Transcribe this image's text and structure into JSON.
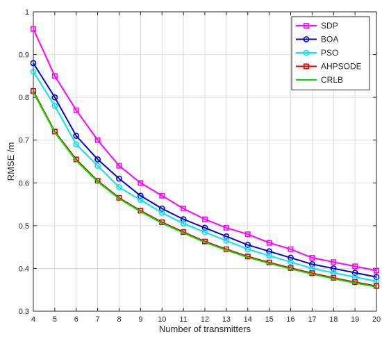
{
  "chart_data": {
    "type": "line",
    "title": "",
    "xlabel": "Number of transmitters",
    "ylabel": "RMSE /m",
    "xlim": [
      4,
      20
    ],
    "ylim": [
      0.3,
      1
    ],
    "x": [
      4,
      5,
      6,
      7,
      8,
      9,
      10,
      11,
      12,
      13,
      14,
      15,
      16,
      17,
      18,
      19,
      20
    ],
    "xticks": [
      "4",
      "5",
      "6",
      "7",
      "8",
      "9",
      "10",
      "11",
      "12",
      "13",
      "14",
      "15",
      "16",
      "17",
      "18",
      "19",
      "20"
    ],
    "yticks": [
      "0.3",
      "0.4",
      "0.5",
      "0.6",
      "0.7",
      "0.8",
      "0.9",
      "1"
    ],
    "grid": true,
    "legend_position": "top-right",
    "series": [
      {
        "name": "SDP",
        "color": "#ff00ff",
        "marker": "square",
        "values": [
          0.96,
          0.85,
          0.77,
          0.7,
          0.64,
          0.6,
          0.57,
          0.54,
          0.515,
          0.495,
          0.48,
          0.46,
          0.445,
          0.425,
          0.415,
          0.405,
          0.395
        ]
      },
      {
        "name": "BOA",
        "color": "#0000cc",
        "marker": "circle",
        "values": [
          0.88,
          0.8,
          0.71,
          0.655,
          0.61,
          0.57,
          0.54,
          0.515,
          0.495,
          0.475,
          0.455,
          0.44,
          0.425,
          0.41,
          0.4,
          0.39,
          0.38
        ]
      },
      {
        "name": "PSO",
        "color": "#00e5ee",
        "marker": "circle",
        "values": [
          0.86,
          0.78,
          0.69,
          0.64,
          0.59,
          0.56,
          0.53,
          0.505,
          0.485,
          0.465,
          0.445,
          0.43,
          0.415,
          0.4,
          0.39,
          0.38,
          0.37
        ]
      },
      {
        "name": "AHPSODE",
        "color": "#e00000",
        "marker": "square",
        "values": [
          0.815,
          0.72,
          0.655,
          0.605,
          0.565,
          0.535,
          0.508,
          0.485,
          0.463,
          0.445,
          0.428,
          0.414,
          0.401,
          0.389,
          0.378,
          0.368,
          0.359
        ]
      },
      {
        "name": "CRLB",
        "color": "#00dd00",
        "marker": "none",
        "values": [
          0.812,
          0.718,
          0.652,
          0.603,
          0.563,
          0.533,
          0.506,
          0.483,
          0.461,
          0.443,
          0.426,
          0.412,
          0.399,
          0.387,
          0.376,
          0.366,
          0.357
        ]
      }
    ]
  }
}
